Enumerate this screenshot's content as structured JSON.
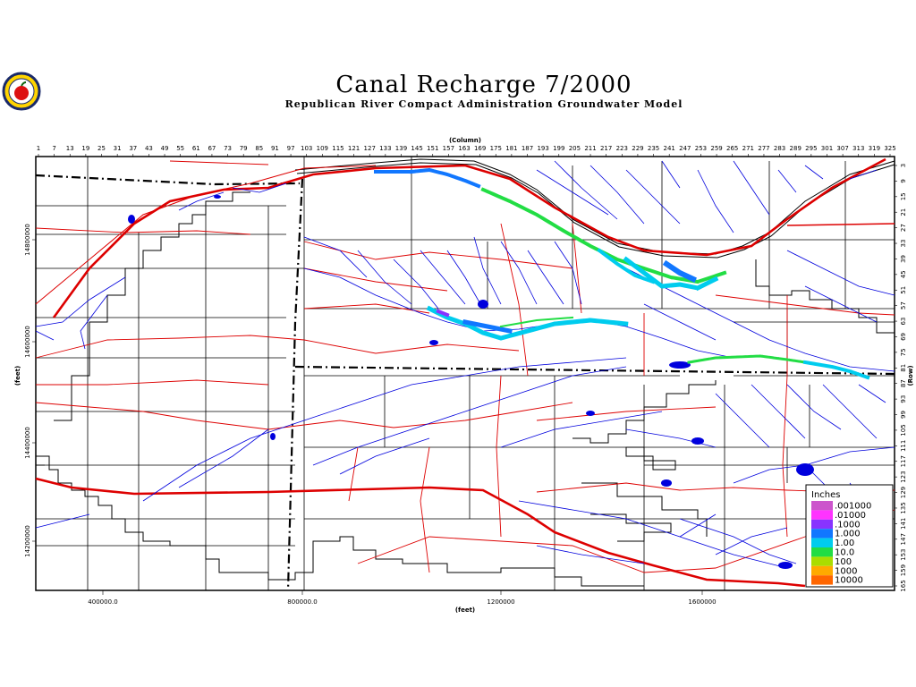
{
  "title": "Canal Recharge 7/2000",
  "subtitle": "Republican River Compact Administration Groundwater Model",
  "logo_icon": "apple-seal-icon",
  "top_axis": {
    "label": "(Column)",
    "ticks": [
      "1",
      "7",
      "13",
      "19",
      "25",
      "31",
      "37",
      "43",
      "49",
      "55",
      "61",
      "67",
      "73",
      "79",
      "85",
      "91",
      "97",
      "103",
      "109",
      "115",
      "121",
      "127",
      "133",
      "139",
      "145",
      "151",
      "157",
      "163",
      "169",
      "175",
      "181",
      "187",
      "193",
      "199",
      "205",
      "211",
      "217",
      "223",
      "229",
      "235",
      "241",
      "247",
      "253",
      "259",
      "265",
      "271",
      "277",
      "283",
      "289",
      "295",
      "301",
      "307",
      "313",
      "319",
      "325"
    ]
  },
  "bottom_axis": {
    "label": "(feet)",
    "ticks": [
      "400000.0",
      "800000.0",
      "1200000",
      "1600000"
    ]
  },
  "left_axis": {
    "label": "(feet)",
    "ticks": [
      "14800000",
      "14600000",
      "14400000",
      "14200000"
    ]
  },
  "right_axis": {
    "label": "(Row)",
    "ticks": [
      "3",
      "9",
      "15",
      "21",
      "27",
      "33",
      "39",
      "45",
      "51",
      "57",
      "63",
      "69",
      "75",
      "81",
      "87",
      "93",
      "99",
      "105",
      "111",
      "117",
      "123",
      "129",
      "135",
      "141",
      "147",
      "153",
      "159",
      "165"
    ]
  },
  "legend": {
    "title": "Inches",
    "items": [
      {
        "label": ".001000",
        "color": "#cc55cc"
      },
      {
        "label": ".01000",
        "color": "#ff33ff"
      },
      {
        "label": ".1000",
        "color": "#8833ff"
      },
      {
        "label": "1.000",
        "color": "#1177ff"
      },
      {
        "label": "1.00",
        "color": "#00ccee"
      },
      {
        "label": "10.0",
        "color": "#22dd44"
      },
      {
        "label": "100",
        "color": "#aadd00"
      },
      {
        "label": "1000",
        "color": "#ffaa00"
      },
      {
        "label": "10000",
        "color": "#ff6600"
      }
    ]
  },
  "colors": {
    "rivers": "#0000dd",
    "roads": "#dd0000",
    "county_lines": "#000000",
    "canal_recharge_low": "#00ccee",
    "canal_recharge_high": "#22dd44"
  }
}
